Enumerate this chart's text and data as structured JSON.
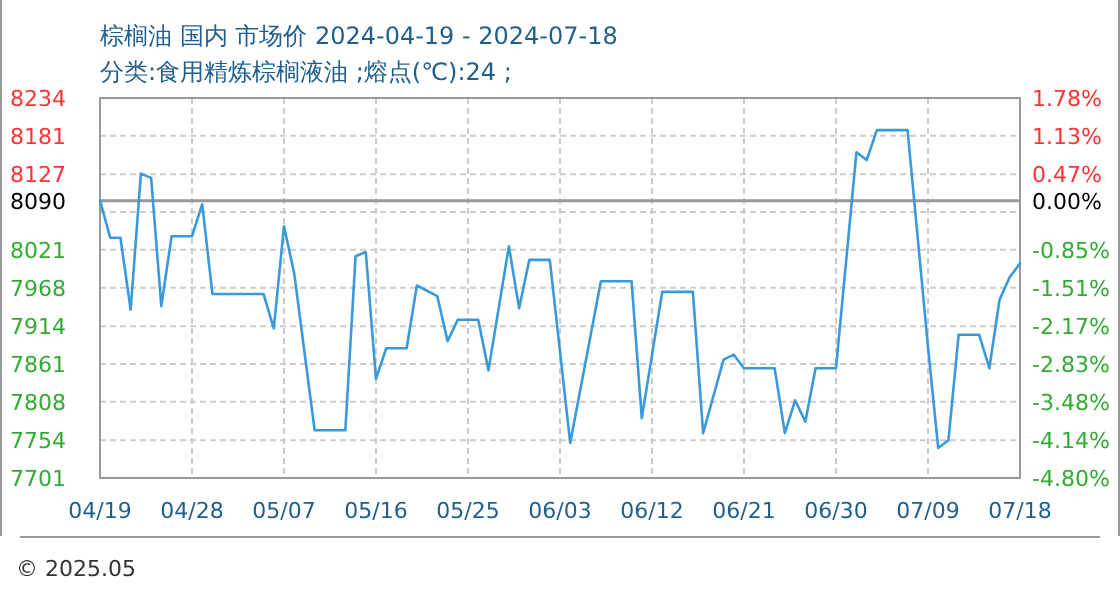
{
  "chart_data": {
    "type": "line",
    "title": "棕榈油 国内 市场价 2024-04-19 - 2024-07-18",
    "subtitle": "分类:食用精炼棕榈液油 ;熔点(℃):24 ;",
    "annotations": [
      "© 2025.05"
    ],
    "x": [
      "2024-04-19",
      "2024-04-20",
      "2024-04-21",
      "2024-04-22",
      "2024-04-23",
      "2024-04-24",
      "2024-04-25",
      "2024-04-26",
      "2024-04-28",
      "2024-04-29",
      "2024-04-30",
      "2024-05-05",
      "2024-05-06",
      "2024-05-07",
      "2024-05-08",
      "2024-05-10",
      "2024-05-13",
      "2024-05-14",
      "2024-05-15",
      "2024-05-16",
      "2024-05-17",
      "2024-05-19",
      "2024-05-20",
      "2024-05-22",
      "2024-05-23",
      "2024-05-24",
      "2024-05-26",
      "2024-05-27",
      "2024-05-29",
      "2024-05-30",
      "2024-05-31",
      "2024-06-02",
      "2024-06-04",
      "2024-06-07",
      "2024-06-10",
      "2024-06-11",
      "2024-06-13",
      "2024-06-16",
      "2024-06-17",
      "2024-06-19",
      "2024-06-20",
      "2024-06-21",
      "2024-06-24",
      "2024-06-25",
      "2024-06-26",
      "2024-06-27",
      "2024-06-28",
      "2024-06-30",
      "2024-07-02",
      "2024-07-03",
      "2024-07-04",
      "2024-07-07",
      "2024-07-09",
      "2024-07-10",
      "2024-07-11",
      "2024-07-12",
      "2024-07-14",
      "2024-07-15",
      "2024-07-16",
      "2024-07-17",
      "2024-07-18"
    ],
    "series": [
      {
        "color": "#3a9ad9",
        "values": [
          8090,
          8038,
          8038,
          7937,
          8128,
          8122,
          7942,
          8040,
          8040,
          8085,
          7959,
          7959,
          7911,
          8054,
          7988,
          7768,
          7768,
          8012,
          8018,
          7840,
          7883,
          7883,
          7971,
          7956,
          7893,
          7923,
          7923,
          7852,
          8026,
          7939,
          8007,
          8007,
          7750,
          7977,
          7977,
          7785,
          7962,
          7962,
          7764,
          7867,
          7874,
          7855,
          7855,
          7764,
          7810,
          7780,
          7855,
          7855,
          8158,
          8147,
          8189,
          8189,
          7885,
          7743,
          7754,
          7902,
          7902,
          7855,
          7951,
          7983,
          8002
        ]
      }
    ],
    "xlim": [
      "2024-04-19",
      "2024-07-18"
    ],
    "xticks": [
      {
        "value": "2024-04-19",
        "label": "04/19"
      },
      {
        "value": "2024-04-28",
        "label": "04/28"
      },
      {
        "value": "2024-05-07",
        "label": "05/07"
      },
      {
        "value": "2024-05-16",
        "label": "05/16"
      },
      {
        "value": "2024-05-25",
        "label": "05/25"
      },
      {
        "value": "2024-06-03",
        "label": "06/03"
      },
      {
        "value": "2024-06-12",
        "label": "06/12"
      },
      {
        "value": "2024-06-21",
        "label": "06/21"
      },
      {
        "value": "2024-06-30",
        "label": "06/30"
      },
      {
        "value": "2024-07-09",
        "label": "07/09"
      },
      {
        "value": "2024-07-18",
        "label": "07/18"
      }
    ],
    "ylim": [
      7701,
      8234
    ],
    "yticks": [
      8234,
      8181,
      8127,
      8090,
      {
        "value": 8074,
        "label": null
      },
      8021,
      7968,
      7914,
      7861,
      7808,
      7754,
      7701
    ],
    "y2lim": [
      -4.8,
      1.78
    ],
    "y2ticks": [
      {
        "value": 1.78,
        "label": "1.78%"
      },
      {
        "value": 1.13,
        "label": "1.13%"
      },
      {
        "value": 0.47,
        "label": "0.47%"
      },
      {
        "value": 0,
        "label": "0.00%"
      },
      {
        "value": -0.85,
        "label": "-0.85%"
      },
      {
        "value": -1.51,
        "label": "-1.51%"
      },
      {
        "value": -2.17,
        "label": "-2.17%"
      },
      {
        "value": -2.83,
        "label": "-2.83%"
      },
      {
        "value": -3.48,
        "label": "-3.48%"
      },
      {
        "value": -4.14,
        "label": "-4.14%"
      },
      {
        "value": -4.8,
        "label": "-4.80%"
      }
    ],
    "ref_lines": [
      {
        "axis": "y",
        "value": 8090,
        "color": "#999999",
        "line_style": "solid"
      }
    ],
    "grid": true,
    "marker": "none",
    "line_style": "solid"
  }
}
